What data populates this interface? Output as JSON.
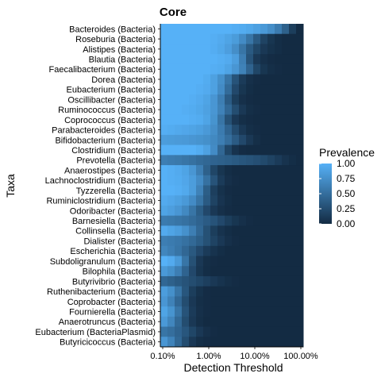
{
  "chart_data": {
    "type": "heatmap",
    "title": "Core",
    "xlabel": "Detection Threshold",
    "ylabel": "Taxa",
    "x_scale": "log",
    "x_ticks": [
      "0.10%",
      "1.00%",
      "10.00%",
      "100.00%"
    ],
    "x_tick_values": [
      0.1,
      1,
      10,
      100
    ],
    "x_range": [
      0.1,
      100
    ],
    "n_thresholds": 20,
    "legend": {
      "title": "Prevalence",
      "labels": [
        "1.00",
        "0.75",
        "0.50",
        "0.25",
        "0.00"
      ],
      "range": [
        0,
        1
      ],
      "color_low": "#132B43",
      "color_high": "#56B1F7",
      "position": "right"
    },
    "taxa": [
      "Bacteroides (Bacteria)",
      "Roseburia (Bacteria)",
      "Alistipes (Bacteria)",
      "Blautia (Bacteria)",
      "Faecalibacterium (Bacteria)",
      "Dorea (Bacteria)",
      "Eubacterium (Bacteria)",
      "Oscillibacter (Bacteria)",
      "Ruminococcus (Bacteria)",
      "Coprococcus (Bacteria)",
      "Parabacteroides (Bacteria)",
      "Bifidobacterium (Bacteria)",
      "Clostridium (Bacteria)",
      "Prevotella (Bacteria)",
      "Anaerostipes (Bacteria)",
      "Lachnoclostridium (Bacteria)",
      "Tyzzerella (Bacteria)",
      "Ruminiclostridium (Bacteria)",
      "Odoribacter (Bacteria)",
      "Barnesiella (Bacteria)",
      "Collinsella (Bacteria)",
      "Dialister (Bacteria)",
      "Escherichia (Bacteria)",
      "Subdoligranulum (Bacteria)",
      "Bilophila (Bacteria)",
      "Butyrivibrio (Bacteria)",
      "Ruthenibacterium (Bacteria)",
      "Coprobacter (Bacteria)",
      "Fournierella (Bacteria)",
      "Anaerotruncus (Bacteria)",
      "Eubacterium (BacteriaPlasmid)",
      "Butyricicoccus (Bacteria)"
    ],
    "prevalence": [
      [
        1.0,
        1.0,
        1.0,
        1.0,
        1.0,
        1.0,
        1.0,
        1.0,
        1.0,
        1.0,
        0.98,
        0.96,
        0.93,
        0.88,
        0.82,
        0.74,
        0.6,
        0.4,
        0.14,
        0.0
      ],
      [
        1.0,
        1.0,
        1.0,
        1.0,
        1.0,
        1.0,
        1.0,
        0.98,
        0.95,
        0.9,
        0.84,
        0.72,
        0.55,
        0.35,
        0.18,
        0.08,
        0.02,
        0.0,
        0.0,
        0.0
      ],
      [
        1.0,
        1.0,
        1.0,
        1.0,
        1.0,
        1.0,
        1.0,
        0.97,
        0.93,
        0.86,
        0.74,
        0.55,
        0.35,
        0.2,
        0.1,
        0.05,
        0.02,
        0.0,
        0.0,
        0.0
      ],
      [
        1.0,
        1.0,
        1.0,
        1.0,
        1.0,
        1.0,
        1.0,
        1.0,
        0.98,
        0.95,
        0.86,
        0.62,
        0.3,
        0.1,
        0.04,
        0.01,
        0.0,
        0.0,
        0.0,
        0.0
      ],
      [
        1.0,
        1.0,
        1.0,
        1.0,
        1.0,
        1.0,
        1.0,
        0.98,
        0.96,
        0.9,
        0.8,
        0.65,
        0.42,
        0.2,
        0.08,
        0.03,
        0.01,
        0.0,
        0.0,
        0.0
      ],
      [
        1.0,
        1.0,
        1.0,
        1.0,
        1.0,
        1.0,
        0.96,
        0.88,
        0.75,
        0.55,
        0.3,
        0.12,
        0.04,
        0.01,
        0.0,
        0.0,
        0.0,
        0.0,
        0.0,
        0.0
      ],
      [
        1.0,
        1.0,
        1.0,
        1.0,
        1.0,
        0.98,
        0.95,
        0.88,
        0.72,
        0.48,
        0.22,
        0.08,
        0.02,
        0.0,
        0.0,
        0.0,
        0.0,
        0.0,
        0.0,
        0.0
      ],
      [
        1.0,
        1.0,
        1.0,
        1.0,
        0.98,
        0.95,
        0.9,
        0.8,
        0.62,
        0.36,
        0.14,
        0.04,
        0.01,
        0.0,
        0.0,
        0.0,
        0.0,
        0.0,
        0.0,
        0.0
      ],
      [
        1.0,
        1.0,
        1.0,
        0.98,
        0.96,
        0.93,
        0.88,
        0.8,
        0.65,
        0.45,
        0.25,
        0.1,
        0.03,
        0.01,
        0.0,
        0.0,
        0.0,
        0.0,
        0.0,
        0.0
      ],
      [
        1.0,
        1.0,
        1.0,
        1.0,
        0.98,
        0.96,
        0.9,
        0.78,
        0.55,
        0.28,
        0.1,
        0.03,
        0.01,
        0.0,
        0.0,
        0.0,
        0.0,
        0.0,
        0.0,
        0.0
      ],
      [
        0.98,
        0.96,
        0.94,
        0.92,
        0.9,
        0.87,
        0.82,
        0.74,
        0.6,
        0.42,
        0.24,
        0.1,
        0.03,
        0.01,
        0.0,
        0.0,
        0.0,
        0.0,
        0.0,
        0.0
      ],
      [
        0.85,
        0.84,
        0.83,
        0.82,
        0.8,
        0.78,
        0.75,
        0.7,
        0.62,
        0.5,
        0.36,
        0.22,
        0.1,
        0.03,
        0.0,
        0.0,
        0.0,
        0.0,
        0.0,
        0.0
      ],
      [
        1.0,
        1.0,
        1.0,
        1.0,
        1.0,
        0.96,
        0.88,
        0.72,
        0.45,
        0.2,
        0.06,
        0.01,
        0.0,
        0.0,
        0.0,
        0.0,
        0.0,
        0.0,
        0.0,
        0.0
      ],
      [
        0.62,
        0.6,
        0.58,
        0.55,
        0.52,
        0.48,
        0.45,
        0.42,
        0.4,
        0.38,
        0.35,
        0.32,
        0.3,
        0.27,
        0.23,
        0.18,
        0.12,
        0.06,
        0.02,
        0.0
      ],
      [
        1.0,
        0.98,
        0.95,
        0.9,
        0.8,
        0.62,
        0.4,
        0.2,
        0.08,
        0.02,
        0.0,
        0.0,
        0.0,
        0.0,
        0.0,
        0.0,
        0.0,
        0.0,
        0.0,
        0.0
      ],
      [
        1.0,
        0.98,
        0.96,
        0.92,
        0.85,
        0.72,
        0.52,
        0.3,
        0.12,
        0.04,
        0.01,
        0.0,
        0.0,
        0.0,
        0.0,
        0.0,
        0.0,
        0.0,
        0.0,
        0.0
      ],
      [
        1.0,
        1.0,
        0.98,
        0.94,
        0.85,
        0.65,
        0.38,
        0.15,
        0.05,
        0.01,
        0.0,
        0.0,
        0.0,
        0.0,
        0.0,
        0.0,
        0.0,
        0.0,
        0.0,
        0.0
      ],
      [
        0.95,
        0.92,
        0.88,
        0.82,
        0.72,
        0.55,
        0.35,
        0.18,
        0.07,
        0.02,
        0.0,
        0.0,
        0.0,
        0.0,
        0.0,
        0.0,
        0.0,
        0.0,
        0.0,
        0.0
      ],
      [
        0.9,
        0.86,
        0.8,
        0.7,
        0.55,
        0.38,
        0.22,
        0.1,
        0.04,
        0.01,
        0.0,
        0.0,
        0.0,
        0.0,
        0.0,
        0.0,
        0.0,
        0.0,
        0.0,
        0.0
      ],
      [
        0.6,
        0.58,
        0.55,
        0.52,
        0.48,
        0.42,
        0.36,
        0.3,
        0.22,
        0.14,
        0.08,
        0.04,
        0.01,
        0.0,
        0.0,
        0.0,
        0.0,
        0.0,
        0.0,
        0.0
      ],
      [
        0.95,
        0.9,
        0.85,
        0.76,
        0.62,
        0.45,
        0.28,
        0.14,
        0.06,
        0.02,
        0.0,
        0.0,
        0.0,
        0.0,
        0.0,
        0.0,
        0.0,
        0.0,
        0.0,
        0.0
      ],
      [
        0.62,
        0.6,
        0.57,
        0.52,
        0.46,
        0.38,
        0.28,
        0.18,
        0.1,
        0.04,
        0.01,
        0.0,
        0.0,
        0.0,
        0.0,
        0.0,
        0.0,
        0.0,
        0.0,
        0.0
      ],
      [
        0.68,
        0.62,
        0.55,
        0.45,
        0.34,
        0.22,
        0.12,
        0.06,
        0.02,
        0.0,
        0.0,
        0.0,
        0.0,
        0.0,
        0.0,
        0.0,
        0.0,
        0.0,
        0.0,
        0.0
      ],
      [
        1.0,
        0.95,
        0.82,
        0.55,
        0.28,
        0.1,
        0.03,
        0.01,
        0.0,
        0.0,
        0.0,
        0.0,
        0.0,
        0.0,
        0.0,
        0.0,
        0.0,
        0.0,
        0.0,
        0.0
      ],
      [
        0.82,
        0.75,
        0.62,
        0.42,
        0.22,
        0.08,
        0.02,
        0.0,
        0.0,
        0.0,
        0.0,
        0.0,
        0.0,
        0.0,
        0.0,
        0.0,
        0.0,
        0.0,
        0.0,
        0.0
      ],
      [
        0.45,
        0.4,
        0.35,
        0.3,
        0.25,
        0.2,
        0.15,
        0.1,
        0.06,
        0.03,
        0.01,
        0.0,
        0.0,
        0.0,
        0.0,
        0.0,
        0.0,
        0.0,
        0.0,
        0.0
      ],
      [
        0.85,
        0.75,
        0.55,
        0.32,
        0.14,
        0.05,
        0.01,
        0.0,
        0.0,
        0.0,
        0.0,
        0.0,
        0.0,
        0.0,
        0.0,
        0.0,
        0.0,
        0.0,
        0.0,
        0.0
      ],
      [
        0.8,
        0.65,
        0.45,
        0.25,
        0.1,
        0.03,
        0.01,
        0.0,
        0.0,
        0.0,
        0.0,
        0.0,
        0.0,
        0.0,
        0.0,
        0.0,
        0.0,
        0.0,
        0.0,
        0.0
      ],
      [
        0.9,
        0.78,
        0.55,
        0.3,
        0.12,
        0.04,
        0.01,
        0.0,
        0.0,
        0.0,
        0.0,
        0.0,
        0.0,
        0.0,
        0.0,
        0.0,
        0.0,
        0.0,
        0.0,
        0.0
      ],
      [
        0.82,
        0.68,
        0.46,
        0.25,
        0.1,
        0.03,
        0.0,
        0.0,
        0.0,
        0.0,
        0.0,
        0.0,
        0.0,
        0.0,
        0.0,
        0.0,
        0.0,
        0.0,
        0.0,
        0.0
      ],
      [
        0.55,
        0.5,
        0.42,
        0.32,
        0.2,
        0.1,
        0.04,
        0.01,
        0.0,
        0.0,
        0.0,
        0.0,
        0.0,
        0.0,
        0.0,
        0.0,
        0.0,
        0.0,
        0.0,
        0.0
      ],
      [
        0.8,
        0.66,
        0.45,
        0.25,
        0.1,
        0.03,
        0.01,
        0.0,
        0.0,
        0.0,
        0.0,
        0.0,
        0.0,
        0.0,
        0.0,
        0.0,
        0.0,
        0.0,
        0.0,
        0.0
      ]
    ]
  }
}
